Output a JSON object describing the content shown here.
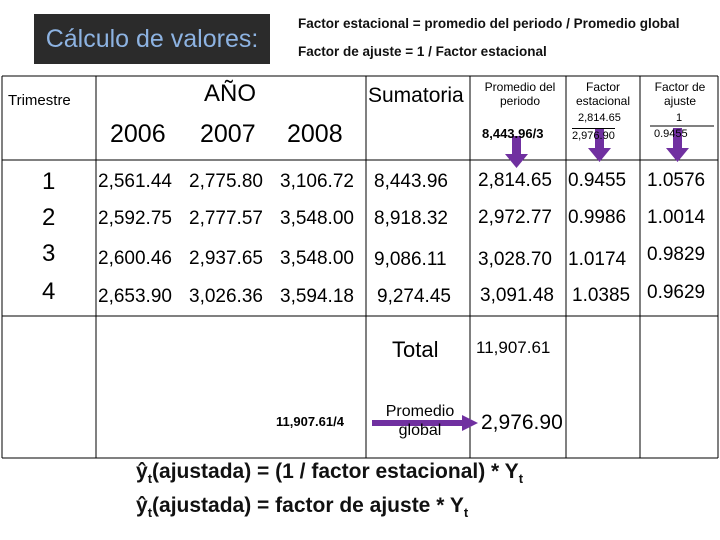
{
  "header": {
    "title": "Cálculo de valores:",
    "formula1": "Factor estacional = promedio del periodo / Promedio global",
    "formula2": "Factor de ajuste  = 1 / Factor estacional"
  },
  "columns": {
    "trimestre": "Trimestre",
    "anio": "AÑO",
    "years": [
      "2006",
      "2007",
      "2008"
    ],
    "sumatoria": "Sumatoria",
    "promedio_periodo": [
      "Promedio del",
      "periodo"
    ],
    "factor_estacional": [
      "Factor",
      "estacional"
    ],
    "factor_ajuste": [
      "Factor de",
      "ajuste"
    ]
  },
  "example": {
    "division": "8,443.96/3",
    "fe_value": "2,814.65",
    "fe_divisor": "2,976.90",
    "fa_num": "1",
    "fa_den": "0.9455"
  },
  "rows": [
    {
      "q": "1",
      "y2006": "2,561.44",
      "y2007": "2,775.80",
      "y2008": "3,106.72",
      "sum": "8,443.96",
      "prom": "2,814.65",
      "fe": "0.9455",
      "fa": "1.0576"
    },
    {
      "q": "2",
      "y2006": "2,592.75",
      "y2007": "2,777.57",
      "y2008": "3,548.00",
      "sum": "8,918.32",
      "prom": "2,972.77",
      "fe": "0.9986",
      "fa": "1.0014"
    },
    {
      "q": "3",
      "y2006": "2,600.46",
      "y2007": "2,937.65",
      "y2008": "3,548.00",
      "sum": "9,086.11",
      "prom": "3,028.70",
      "fe": "1.0174",
      "fa": "0.9829"
    },
    {
      "q": "4",
      "y2006": "2,653.90",
      "y2007": "3,026.36",
      "y2008": "3,594.18",
      "sum": "9,274.45",
      "prom": "3,091.48",
      "fe": "1.0385",
      "fa": "0.9629"
    }
  ],
  "totals": {
    "total_label": "Total",
    "total_value": "11,907.61",
    "division": "11,907.61/4",
    "promedio_global_label": [
      "Promedio",
      "global"
    ],
    "promedio_global_value": "2,976.90"
  },
  "footer": {
    "line1_prefix": "ŷ",
    "line1_sub": "t",
    "line1_text": "(ajustada) = (1 / factor estacional) * Y",
    "line1_end_sub": "t",
    "line2_prefix": "ŷ",
    "line2_sub": "t",
    "line2_text": "(ajustada) = factor de ajuste * Y",
    "line2_end_sub": "t"
  },
  "colors": {
    "title_bg": "#2b2b2b",
    "title_text": "#8db3e2",
    "arrow": "#7030a0",
    "grid_line": "#000000"
  }
}
